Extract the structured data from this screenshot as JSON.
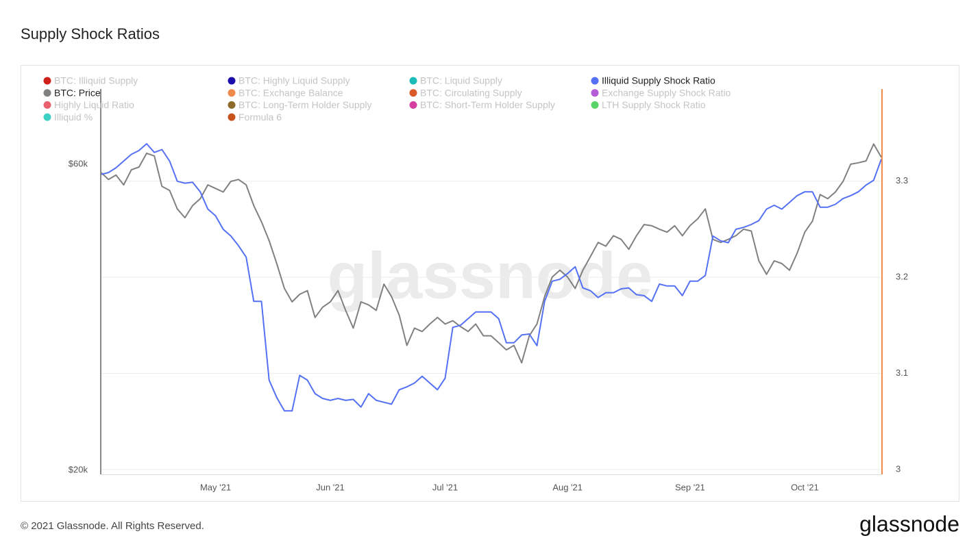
{
  "chart_data": {
    "type": "line",
    "title": "Supply Shock Ratios",
    "watermark": "glassnode",
    "categories": [
      null,
      null,
      null,
      null,
      null,
      null,
      null,
      null,
      null,
      null,
      null,
      null,
      null,
      null,
      null,
      "May '21",
      null,
      null,
      null,
      null,
      null,
      null,
      null,
      null,
      null,
      null,
      null,
      null,
      null,
      null,
      "Jun '21",
      null,
      null,
      null,
      null,
      null,
      null,
      null,
      null,
      null,
      null,
      null,
      null,
      null,
      null,
      "Jul '21",
      null,
      null,
      null,
      null,
      null,
      null,
      null,
      null,
      null,
      null,
      null,
      null,
      null,
      null,
      null,
      "Aug '21",
      null,
      null,
      null,
      null,
      null,
      null,
      null,
      null,
      null,
      null,
      null,
      null,
      null,
      null,
      null,
      "Sep '21",
      null,
      null,
      null,
      null,
      null,
      null,
      null,
      null,
      null,
      null,
      null,
      null,
      null,
      null,
      "Oct '21",
      null,
      null,
      null,
      null,
      null,
      null,
      null,
      null,
      null,
      null
    ],
    "log_y": true,
    "ylim": [
      19700,
      78600
    ],
    "yticks": [
      {
        "value": 20000,
        "label": "$20k"
      },
      {
        "value": 60000,
        "label": "$60k"
      }
    ],
    "y2lim": [
      2.995,
      3.396
    ],
    "y2ticks": [
      3,
      3.1,
      3.2,
      3.3
    ],
    "grid": true,
    "series": [
      {
        "name": "BTC: Price",
        "color": "#808080",
        "values": [
          58300,
          56800,
          57700,
          55700,
          58800,
          59400,
          62400,
          61800,
          55400,
          54600,
          51100,
          49500,
          51700,
          53000,
          55700,
          55000,
          54300,
          56400,
          56800,
          55700,
          51700,
          48800,
          45600,
          42000,
          38400,
          36600,
          37600,
          38100,
          34600,
          35900,
          36600,
          38100,
          35500,
          33300,
          36600,
          36200,
          35500,
          39000,
          37300,
          34900,
          31300,
          33300,
          32900,
          33800,
          34600,
          33800,
          34200,
          33500,
          32900,
          33800,
          32400,
          32400,
          31600,
          30800,
          31300,
          29400,
          32400,
          33800,
          37300,
          40000,
          41000,
          40000,
          38400,
          41000,
          43100,
          45300,
          44700,
          46400,
          45800,
          44200,
          46400,
          48300,
          48100,
          47500,
          47000,
          48100,
          46400,
          48100,
          49300,
          51100,
          45800,
          45300,
          45800,
          46400,
          47500,
          47200,
          42400,
          40400,
          42400,
          42000,
          41000,
          43600,
          47000,
          48900,
          53800,
          53000,
          54300,
          56400,
          60000,
          60300,
          60700,
          64500,
          61500
        ]
      },
      {
        "name": "Illiquid Supply Shock Ratio",
        "color": "#5470f5",
        "axis": "y2",
        "values": [
          3.307,
          3.309,
          3.314,
          3.321,
          3.328,
          3.332,
          3.339,
          3.33,
          3.333,
          3.321,
          3.3,
          3.298,
          3.299,
          3.289,
          3.271,
          3.264,
          3.25,
          3.243,
          3.233,
          3.221,
          3.175,
          3.175,
          3.093,
          3.075,
          3.061,
          3.061,
          3.098,
          3.093,
          3.079,
          3.074,
          3.072,
          3.074,
          3.072,
          3.073,
          3.065,
          3.079,
          3.072,
          3.07,
          3.068,
          3.083,
          3.086,
          3.09,
          3.097,
          3.09,
          3.083,
          3.095,
          3.148,
          3.15,
          3.157,
          3.164,
          3.164,
          3.164,
          3.157,
          3.132,
          3.132,
          3.14,
          3.141,
          3.129,
          3.175,
          3.196,
          3.198,
          3.204,
          3.211,
          3.189,
          3.186,
          3.179,
          3.184,
          3.184,
          3.188,
          3.189,
          3.182,
          3.181,
          3.175,
          3.193,
          3.191,
          3.191,
          3.181,
          3.196,
          3.196,
          3.202,
          3.243,
          3.238,
          3.236,
          3.25,
          3.252,
          3.255,
          3.259,
          3.271,
          3.275,
          3.271,
          3.278,
          3.285,
          3.289,
          3.289,
          3.273,
          3.273,
          3.276,
          3.282,
          3.285,
          3.289,
          3.296,
          3.301,
          3.323
        ]
      }
    ],
    "hidden_series": [
      {
        "name": "BTC: Illiquid Supply",
        "color": "#d0201a"
      },
      {
        "name": "BTC: Highly Liquid Supply",
        "color": "#1a0fad"
      },
      {
        "name": "BTC: Liquid Supply",
        "color": "#1bbcb8"
      },
      {
        "name": "BTC: Exchange Balance",
        "color": "#f08a4b"
      },
      {
        "name": "BTC: Circulating Supply",
        "color": "#d9592a"
      },
      {
        "name": "Exchange Supply Shock Ratio",
        "color": "#b55ad8"
      },
      {
        "name": "Highly Liquid Ratio",
        "color": "#e8616f"
      },
      {
        "name": "BTC: Long-Term Holder Supply",
        "color": "#8b6a2a"
      },
      {
        "name": "BTC: Short-Term Holder Supply",
        "color": "#d63fa1"
      },
      {
        "name": "LTH Supply Shock Ratio",
        "color": "#59d46a"
      },
      {
        "name": "Illiquid %",
        "color": "#3dd1c4"
      },
      {
        "name": "Formula 6",
        "color": "#c7521c"
      }
    ]
  },
  "footer": {
    "copyright": "© 2021 Glassnode. All Rights Reserved.",
    "logo": "glassnode"
  }
}
